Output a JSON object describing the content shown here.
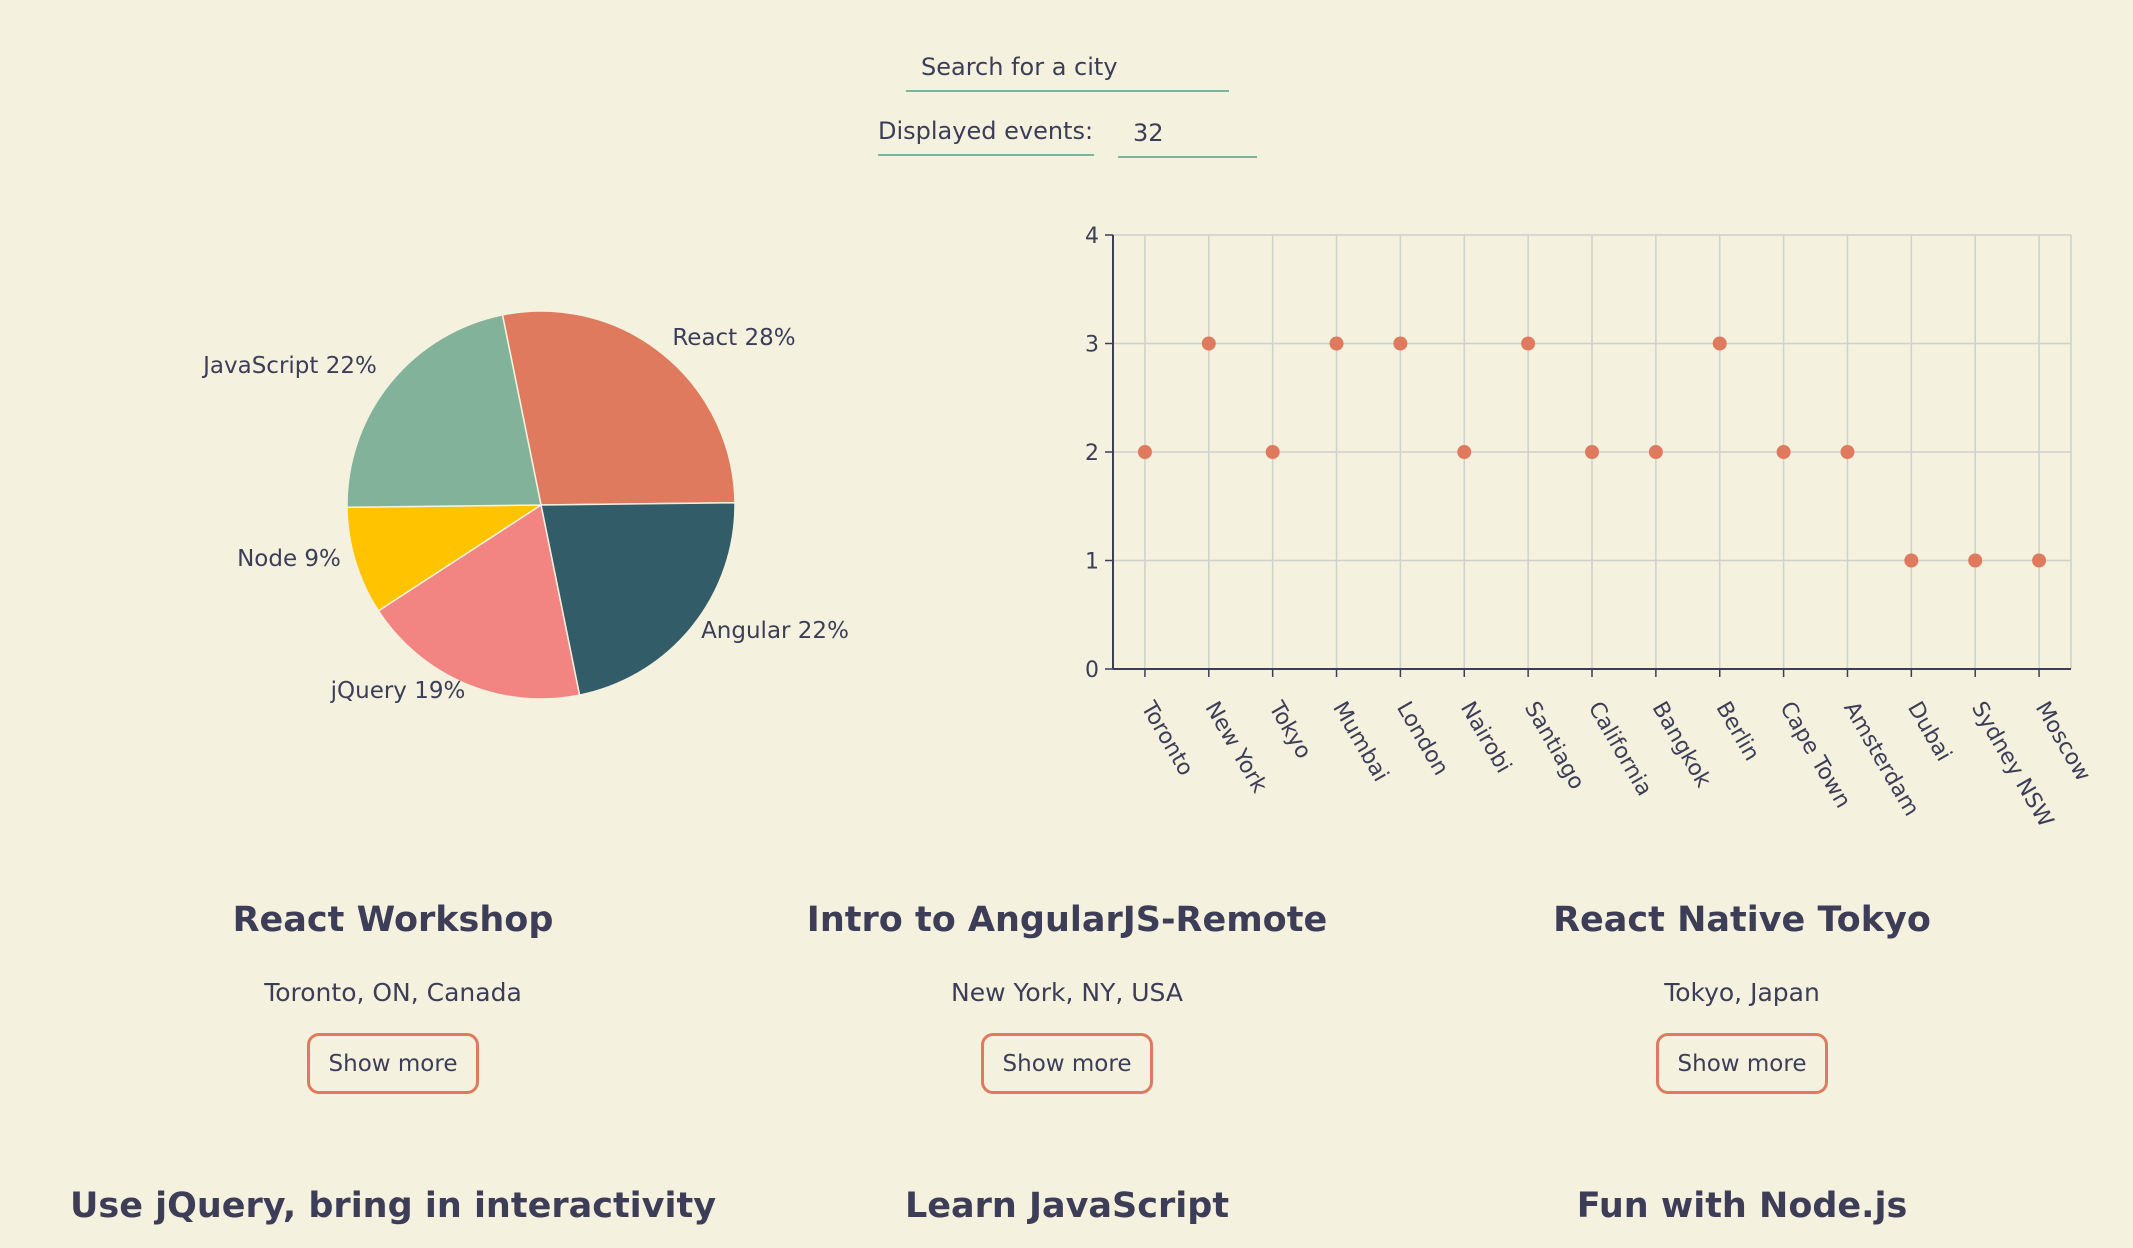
{
  "search": {
    "placeholder": "Search for a city",
    "value": ""
  },
  "events_filter": {
    "label": "Displayed events:",
    "value": "32"
  },
  "colors": {
    "background": "#f4f1df",
    "accent": "#df7a5e",
    "underline": "#7bb39b",
    "text": "#3d3d58"
  },
  "chart_data": [
    {
      "type": "pie",
      "title": "",
      "slices": [
        {
          "label": "React 28%",
          "name": "React",
          "value": 28,
          "color": "#df7a5e"
        },
        {
          "label": "Angular 22%",
          "name": "Angular",
          "value": 22,
          "color": "#325c67"
        },
        {
          "label": "jQuery 19%",
          "name": "jQuery",
          "value": 19,
          "color": "#f28482"
        },
        {
          "label": "Node 9%",
          "name": "Node",
          "value": 9,
          "color": "#ffc300"
        },
        {
          "label": "JavaScript 22%",
          "name": "JavaScript",
          "value": 22,
          "color": "#82b29a"
        }
      ]
    },
    {
      "type": "scatter",
      "title": "",
      "xlabel": "",
      "ylabel": "",
      "categories": [
        "Toronto",
        "New York",
        "Tokyo",
        "Mumbai",
        "London",
        "Nairobi",
        "Santiago",
        "California",
        "Bangkok",
        "Berlin",
        "Cape Town",
        "Amsterdam",
        "Dubai",
        "Sydney NSW",
        "Moscow"
      ],
      "values": [
        2,
        3,
        2,
        3,
        3,
        2,
        3,
        2,
        2,
        3,
        2,
        2,
        1,
        1,
        1
      ],
      "ylim": [
        0,
        4
      ],
      "yticks": [
        "0",
        "1",
        "2",
        "3",
        "4"
      ],
      "grid": true,
      "point_color": "#df7a5e"
    }
  ],
  "events": [
    {
      "title": "React Workshop",
      "location": "Toronto, ON, Canada",
      "button": "Show more"
    },
    {
      "title": "Intro to AngularJS-Remote",
      "location": "New York, NY, USA",
      "button": "Show more"
    },
    {
      "title": "React Native Tokyo",
      "location": "Tokyo, Japan",
      "button": "Show more"
    },
    {
      "title": "Use jQuery, bring in interactivity",
      "location": "",
      "button": ""
    },
    {
      "title": "Learn JavaScript",
      "location": "",
      "button": ""
    },
    {
      "title": "Fun with Node.js",
      "location": "",
      "button": ""
    }
  ]
}
